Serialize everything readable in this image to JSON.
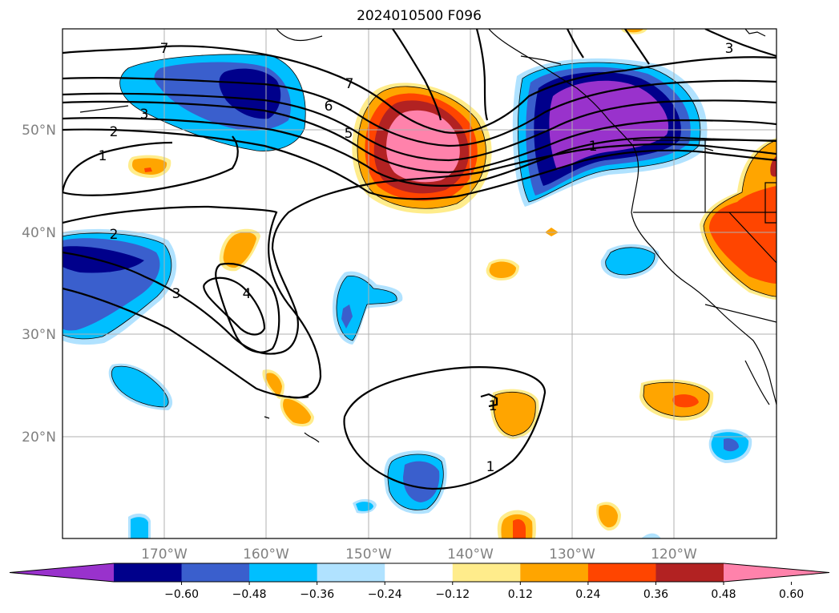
{
  "title": "2024010500 F096",
  "map": {
    "lat_labels": [
      "50°N",
      "40°N",
      "30°N",
      "20°N"
    ],
    "lon_labels": [
      "170°W",
      "160°W",
      "150°W",
      "140°W",
      "130°W",
      "120°W"
    ],
    "contour_labels": [
      "7",
      "6",
      "5",
      "3",
      "2",
      "1",
      "2",
      "3",
      "4",
      "1",
      "1",
      "1",
      "3"
    ],
    "colors": {
      "neg_060": "#9932cc",
      "neg_048": "#00008b",
      "neg_036": "#3a5fcd",
      "neg_024": "#00bfff",
      "neg_012": "#b0e2ff",
      "pos_012": "#ffec8b",
      "pos_024": "#ffa500",
      "pos_036": "#ff4500",
      "pos_048": "#b22222",
      "pos_060": "#ff82ab"
    }
  },
  "colorbar": {
    "labels": [
      "−0.60",
      "−0.48",
      "−0.36",
      "−0.24",
      "−0.12",
      "0.12",
      "0.24",
      "0.36",
      "0.48",
      "0.60"
    ],
    "colors": [
      "#9932cc",
      "#00008b",
      "#3a5fcd",
      "#00bfff",
      "#b0e2ff",
      "#ffffff",
      "#ffec8b",
      "#ffa500",
      "#ff4500",
      "#b22222",
      "#ff82ab"
    ]
  }
}
